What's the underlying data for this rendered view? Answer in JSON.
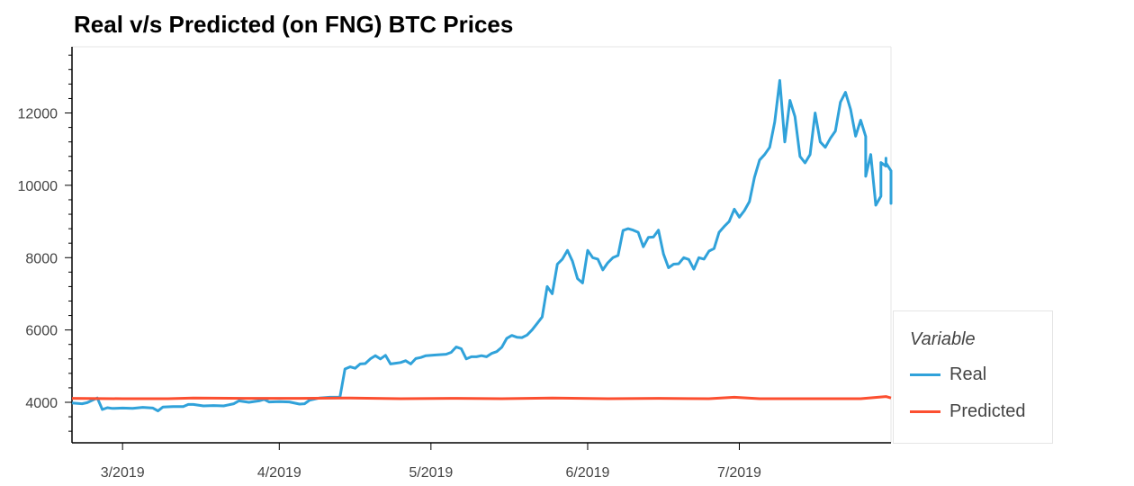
{
  "chart_data": {
    "type": "line",
    "title": "Real v/s Predicted (on FNG) BTC Prices",
    "xlabel": "",
    "ylabel": "",
    "x_tick_labels": [
      {
        "date": "2019-03-01",
        "label": "3/2019"
      },
      {
        "date": "2019-04-01",
        "label": "4/2019"
      },
      {
        "date": "2019-05-01",
        "label": "5/2019"
      },
      {
        "date": "2019-06-01",
        "label": "6/2019"
      },
      {
        "date": "2019-07-01",
        "label": "7/2019"
      }
    ],
    "y_ticks": [
      4000,
      6000,
      8000,
      10000,
      12000
    ],
    "xlim": [
      "2019-02-19",
      "2019-07-31"
    ],
    "ylim": [
      2880,
      13830
    ],
    "grid": false,
    "legend_position": "right",
    "legend_title": "Variable",
    "series": [
      {
        "name": "Real",
        "color": "#30a2da",
        "points": [
          [
            "2019-02-19",
            3980
          ],
          [
            "2019-02-21",
            3960
          ],
          [
            "2019-02-22",
            3990
          ],
          [
            "2019-02-24",
            4120
          ],
          [
            "2019-02-25",
            3800
          ],
          [
            "2019-02-26",
            3850
          ],
          [
            "2019-02-27",
            3830
          ],
          [
            "2019-03-01",
            3840
          ],
          [
            "2019-03-03",
            3830
          ],
          [
            "2019-03-05",
            3860
          ],
          [
            "2019-03-07",
            3840
          ],
          [
            "2019-03-08",
            3760
          ],
          [
            "2019-03-09",
            3870
          ],
          [
            "2019-03-11",
            3880
          ],
          [
            "2019-03-13",
            3880
          ],
          [
            "2019-03-14",
            3940
          ],
          [
            "2019-03-15",
            3940
          ],
          [
            "2019-03-17",
            3900
          ],
          [
            "2019-03-19",
            3910
          ],
          [
            "2019-03-21",
            3900
          ],
          [
            "2019-03-23",
            3960
          ],
          [
            "2019-03-24",
            4040
          ],
          [
            "2019-03-26",
            4000
          ],
          [
            "2019-03-28",
            4040
          ],
          [
            "2019-03-29",
            4080
          ],
          [
            "2019-03-30",
            4010
          ],
          [
            "2019-04-01",
            4020
          ],
          [
            "2019-04-03",
            4010
          ],
          [
            "2019-04-05",
            3950
          ],
          [
            "2019-04-06",
            3960
          ],
          [
            "2019-04-07",
            4060
          ],
          [
            "2019-04-09",
            4120
          ],
          [
            "2019-04-11",
            4140
          ],
          [
            "2019-04-13",
            4140
          ],
          [
            "2019-04-14",
            4920
          ],
          [
            "2019-04-15",
            4980
          ],
          [
            "2019-04-16",
            4940
          ],
          [
            "2019-04-17",
            5060
          ],
          [
            "2019-04-18",
            5070
          ],
          [
            "2019-04-19",
            5200
          ],
          [
            "2019-04-20",
            5290
          ],
          [
            "2019-04-21",
            5200
          ],
          [
            "2019-04-22",
            5300
          ],
          [
            "2019-04-23",
            5060
          ],
          [
            "2019-04-24",
            5080
          ],
          [
            "2019-04-25",
            5100
          ],
          [
            "2019-04-26",
            5150
          ],
          [
            "2019-04-27",
            5060
          ],
          [
            "2019-04-28",
            5210
          ],
          [
            "2019-04-29",
            5240
          ],
          [
            "2019-04-30",
            5290
          ],
          [
            "2019-05-02",
            5310
          ],
          [
            "2019-05-04",
            5330
          ],
          [
            "2019-05-05",
            5380
          ],
          [
            "2019-05-06",
            5530
          ],
          [
            "2019-05-07",
            5480
          ],
          [
            "2019-05-08",
            5200
          ],
          [
            "2019-05-09",
            5260
          ],
          [
            "2019-05-10",
            5260
          ],
          [
            "2019-05-11",
            5290
          ],
          [
            "2019-05-12",
            5260
          ],
          [
            "2019-05-13",
            5350
          ],
          [
            "2019-05-14",
            5400
          ],
          [
            "2019-05-15",
            5520
          ],
          [
            "2019-05-16",
            5770
          ],
          [
            "2019-05-17",
            5850
          ],
          [
            "2019-05-18",
            5800
          ],
          [
            "2019-05-19",
            5790
          ],
          [
            "2019-05-20",
            5860
          ],
          [
            "2019-05-21",
            6000
          ],
          [
            "2019-05-22",
            6180
          ],
          [
            "2019-05-23",
            6360
          ],
          [
            "2019-05-24",
            7200
          ],
          [
            "2019-05-25",
            7000
          ],
          [
            "2019-05-26",
            7820
          ],
          [
            "2019-05-27",
            7960
          ],
          [
            "2019-05-28",
            8200
          ],
          [
            "2019-05-29",
            7900
          ],
          [
            "2019-05-30",
            7420
          ],
          [
            "2019-05-31",
            7300
          ],
          [
            "2019-06-01",
            8200
          ],
          [
            "2019-06-02",
            8000
          ],
          [
            "2019-06-03",
            7960
          ],
          [
            "2019-06-04",
            7660
          ],
          [
            "2019-06-05",
            7860
          ],
          [
            "2019-06-06",
            8000
          ],
          [
            "2019-06-07",
            8060
          ],
          [
            "2019-06-08",
            8750
          ],
          [
            "2019-06-09",
            8800
          ],
          [
            "2019-06-10",
            8760
          ],
          [
            "2019-06-11",
            8700
          ],
          [
            "2019-06-12",
            8300
          ],
          [
            "2019-06-13",
            8560
          ],
          [
            "2019-06-14",
            8570
          ],
          [
            "2019-06-15",
            8760
          ],
          [
            "2019-06-16",
            8100
          ],
          [
            "2019-06-17",
            7720
          ],
          [
            "2019-06-18",
            7820
          ],
          [
            "2019-06-19",
            7830
          ],
          [
            "2019-06-20",
            8000
          ],
          [
            "2019-06-21",
            7950
          ],
          [
            "2019-06-22",
            7680
          ],
          [
            "2019-06-23",
            8000
          ],
          [
            "2019-06-24",
            7960
          ],
          [
            "2019-06-25",
            8180
          ],
          [
            "2019-06-26",
            8250
          ],
          [
            "2019-06-27",
            8700
          ],
          [
            "2019-06-28",
            8860
          ],
          [
            "2019-06-29",
            9000
          ],
          [
            "2019-06-30",
            9340
          ],
          [
            "2019-07-01",
            9120
          ],
          [
            "2019-07-02",
            9300
          ],
          [
            "2019-07-03",
            9550
          ],
          [
            "2019-07-04",
            10220
          ],
          [
            "2019-07-05",
            10700
          ],
          [
            "2019-07-06",
            10850
          ],
          [
            "2019-07-07",
            11050
          ],
          [
            "2019-07-08",
            11750
          ],
          [
            "2019-07-09",
            12900
          ],
          [
            "2019-07-10",
            11200
          ],
          [
            "2019-07-11",
            12350
          ],
          [
            "2019-07-12",
            11900
          ],
          [
            "2019-07-13",
            10800
          ],
          [
            "2019-07-14",
            10620
          ],
          [
            "2019-07-15",
            10850
          ],
          [
            "2019-07-16",
            12000
          ],
          [
            "2019-07-17",
            11200
          ],
          [
            "2019-07-18",
            11050
          ],
          [
            "2019-07-19",
            11300
          ],
          [
            "2019-07-20",
            11500
          ],
          [
            "2019-07-21",
            12300
          ],
          [
            "2019-07-22",
            12570
          ],
          [
            "2019-07-23",
            12100
          ],
          [
            "2019-07-24",
            11360
          ],
          [
            "2019-07-25",
            11800
          ],
          [
            "2019-07-26",
            11350
          ],
          [
            "2019-07-26",
            10250
          ],
          [
            "2019-07-27",
            10850
          ],
          [
            "2019-07-28",
            9450
          ],
          [
            "2019-07-29",
            9700
          ],
          [
            "2019-07-29",
            10630
          ],
          [
            "2019-07-30",
            10530
          ],
          [
            "2019-07-30",
            10750
          ],
          [
            "2019-07-30",
            10620
          ],
          [
            "2019-07-31",
            10400
          ],
          [
            "2019-07-31",
            9870
          ],
          [
            "2019-07-31",
            9800
          ],
          [
            "2019-07-31",
            9900
          ],
          [
            "2019-07-31",
            9860
          ],
          [
            "2019-07-31",
            9500
          ],
          [
            "2019-07-31",
            9550
          ]
        ]
      },
      {
        "name": "Predicted",
        "color": "#fc4f30",
        "points": [
          [
            "2019-02-19",
            4110
          ],
          [
            "2019-03-01",
            4100
          ],
          [
            "2019-03-10",
            4100
          ],
          [
            "2019-03-15",
            4120
          ],
          [
            "2019-03-25",
            4110
          ],
          [
            "2019-04-05",
            4110
          ],
          [
            "2019-04-15",
            4120
          ],
          [
            "2019-04-25",
            4100
          ],
          [
            "2019-05-05",
            4110
          ],
          [
            "2019-05-15",
            4100
          ],
          [
            "2019-05-25",
            4120
          ],
          [
            "2019-06-05",
            4100
          ],
          [
            "2019-06-15",
            4110
          ],
          [
            "2019-06-25",
            4100
          ],
          [
            "2019-06-30",
            4140
          ],
          [
            "2019-07-05",
            4100
          ],
          [
            "2019-07-15",
            4100
          ],
          [
            "2019-07-25",
            4100
          ],
          [
            "2019-07-30",
            4160
          ],
          [
            "2019-07-31",
            4120
          ]
        ]
      }
    ]
  }
}
